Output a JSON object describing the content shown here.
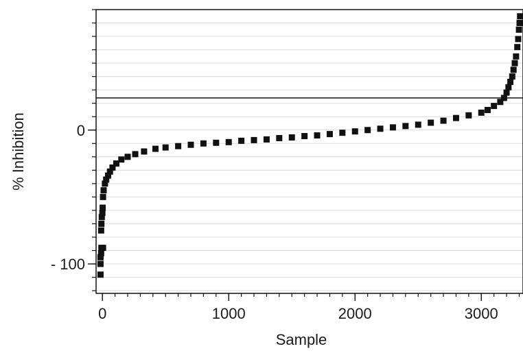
{
  "chart_data": {
    "type": "scatter",
    "title": "",
    "xlabel": "Sample",
    "ylabel": "% Inhibition",
    "xlim": [
      -50,
      3330
    ],
    "ylim": [
      -122,
      90
    ],
    "x_ticks": [
      0,
      1000,
      2000,
      3000
    ],
    "x_tick_labels": [
      "0",
      "1000",
      "2000",
      "3000"
    ],
    "x_minor_step": 100,
    "y_ticks": [
      0,
      -100
    ],
    "y_tick_labels": [
      "0",
      "- 100"
    ],
    "y_minor_step": 10,
    "grid": true,
    "reference_line": {
      "y": 24
    },
    "colors": {
      "points": "#111111",
      "reference_line": "#111111",
      "grid": "#d9d9d9"
    },
    "series": [
      {
        "marker": "square",
        "points": [
          [
            -15,
            -108
          ],
          [
            -15,
            -100
          ],
          [
            -15,
            -95
          ],
          [
            -10,
            -92
          ],
          [
            -8,
            -88
          ],
          [
            5,
            -88
          ],
          [
            -10,
            -75
          ],
          [
            -8,
            -70
          ],
          [
            -5,
            -65
          ],
          [
            0,
            -62
          ],
          [
            2,
            -58
          ],
          [
            5,
            -50
          ],
          [
            10,
            -45
          ],
          [
            20,
            -40
          ],
          [
            30,
            -37
          ],
          [
            45,
            -34
          ],
          [
            60,
            -31
          ],
          [
            80,
            -28
          ],
          [
            110,
            -25
          ],
          [
            150,
            -22
          ],
          [
            200,
            -20
          ],
          [
            260,
            -18
          ],
          [
            330,
            -16
          ],
          [
            420,
            -14
          ],
          [
            500,
            -13
          ],
          [
            600,
            -12
          ],
          [
            700,
            -11
          ],
          [
            800,
            -10
          ],
          [
            900,
            -9.5
          ],
          [
            1000,
            -9
          ],
          [
            1100,
            -8
          ],
          [
            1200,
            -7.5
          ],
          [
            1300,
            -7
          ],
          [
            1400,
            -6
          ],
          [
            1500,
            -5.5
          ],
          [
            1600,
            -4.5
          ],
          [
            1700,
            -4
          ],
          [
            1800,
            -3
          ],
          [
            1900,
            -2
          ],
          [
            2000,
            -1
          ],
          [
            2100,
            0
          ],
          [
            2200,
            1
          ],
          [
            2300,
            2
          ],
          [
            2400,
            3
          ],
          [
            2500,
            4
          ],
          [
            2600,
            5.5
          ],
          [
            2700,
            7
          ],
          [
            2800,
            9
          ],
          [
            2900,
            11
          ],
          [
            3000,
            13
          ],
          [
            3050,
            15
          ],
          [
            3100,
            18
          ],
          [
            3150,
            21
          ],
          [
            3180,
            24
          ],
          [
            3200,
            28
          ],
          [
            3215,
            32
          ],
          [
            3230,
            36
          ],
          [
            3245,
            40
          ],
          [
            3255,
            45
          ],
          [
            3265,
            50
          ],
          [
            3275,
            55
          ],
          [
            3285,
            62
          ],
          [
            3292,
            68
          ],
          [
            3298,
            75
          ],
          [
            3303,
            80
          ],
          [
            3307,
            85
          ]
        ]
      }
    ]
  }
}
